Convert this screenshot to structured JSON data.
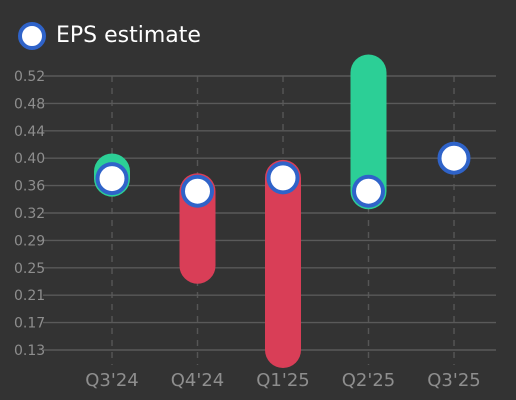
{
  "legend": {
    "label": "EPS estimate"
  },
  "colors": {
    "background": "#333333",
    "grid": "#5a5a5a",
    "tick_text": "#8e8e8e",
    "marker_fill": "#ffffff",
    "marker_stroke": "#2f63c9",
    "beat": "#2ccf96",
    "miss": "#d93e57"
  },
  "chart_data": {
    "type": "bar",
    "legend": [
      "EPS estimate"
    ],
    "legend_position": "top-left",
    "grid": true,
    "ylim": [
      0.13,
      0.52
    ],
    "y_ticks": [
      "0.52",
      "0.48",
      "0.44",
      "0.40",
      "0.36",
      "0.32",
      "0.29",
      "0.25",
      "0.21",
      "0.17",
      "0.13"
    ],
    "categories": [
      "Q3'24",
      "Q4'24",
      "Q1'25",
      "Q2'25",
      "Q3'25"
    ],
    "estimate": [
      0.374,
      0.356,
      0.375,
      0.356,
      0.403
    ],
    "actual": [
      0.384,
      0.25,
      0.13,
      0.525,
      null
    ],
    "bar_status": [
      "beat",
      "miss",
      "miss",
      "beat",
      null
    ]
  }
}
